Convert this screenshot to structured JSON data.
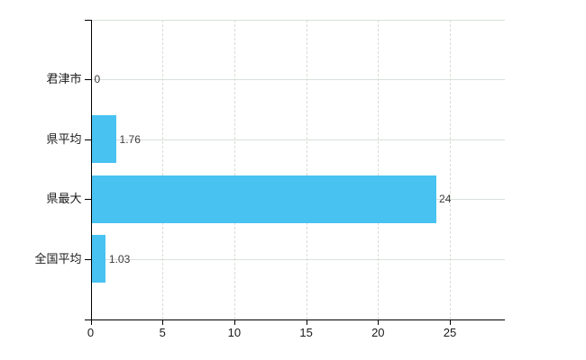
{
  "chart_data": {
    "type": "bar",
    "orientation": "horizontal",
    "title": "",
    "xlabel": "",
    "ylabel": "",
    "categories": [
      "君津市",
      "県平均",
      "県最大",
      "全国平均"
    ],
    "values": [
      0,
      1.76,
      24,
      1.03
    ],
    "value_labels": [
      "0",
      "1.76",
      "24",
      "1.03"
    ],
    "x_ticks": [
      0,
      5,
      10,
      15,
      20,
      25
    ],
    "x_tick_labels": [
      "0",
      "5",
      "10",
      "15",
      "20",
      "25"
    ],
    "xlim": [
      0,
      28.8
    ],
    "grid": true,
    "legend": "none",
    "colors": {
      "bar": "#47c2f1",
      "grid_horizontal": "#d9e0d9",
      "grid_vertical": "#d6ded6",
      "axis": "#000000",
      "category_label": "#1a1a1a",
      "value_label": "#3c3c3c",
      "background": "#ffffff"
    }
  }
}
